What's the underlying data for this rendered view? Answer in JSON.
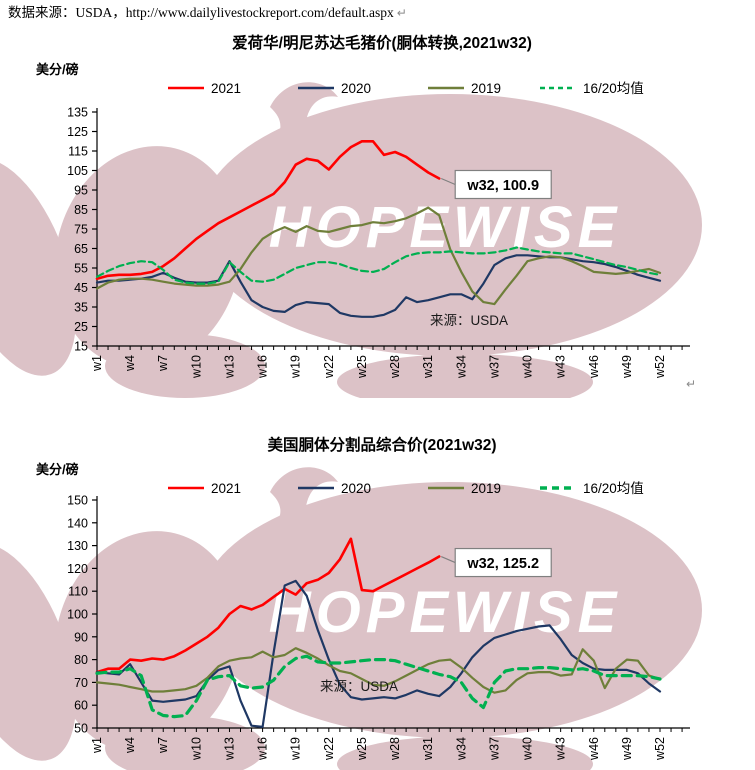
{
  "header": {
    "source_line": "数据来源：USDA，http://www.dailylivestockreport.com/default.aspx",
    "return_mark": "↵"
  },
  "watermark": {
    "text": "HOPEWISE",
    "pig_color": "#dcc2c7",
    "text_color": "#ffffff"
  },
  "palette": {
    "red": "#ff0000",
    "navy": "#1f3864",
    "olive": "#6f7f3a",
    "green": "#00b050",
    "axis": "#000000",
    "callout_border": "#808080",
    "gray": "#8a8a8a"
  },
  "chart_data": [
    {
      "type": "line",
      "title": "爱荷华/明尼苏达毛猪价(胴体转换,2021w32)",
      "y_axis_label": "美分/磅",
      "source_note": "来源：USDA",
      "annotation": {
        "label": "w32, 100.9",
        "week": 32,
        "value": 100.9
      },
      "ylim": [
        15,
        135
      ],
      "y_ticks": [
        135,
        125,
        115,
        105,
        95,
        85,
        75,
        65,
        55,
        45,
        35,
        25,
        15
      ],
      "x_tick_labels": [
        "w1",
        "w4",
        "w7",
        "w10",
        "w13",
        "w16",
        "w19",
        "w22",
        "w25",
        "w28",
        "w31",
        "w34",
        "w37",
        "w40",
        "w43",
        "w46",
        "w49",
        "w52"
      ],
      "x_weeks": 52,
      "legend": [
        "2021",
        "2020",
        "2019",
        "16/20均值"
      ],
      "legend_position": "top",
      "grid": false,
      "series": [
        {
          "name": "2021",
          "color": "red",
          "dashed": false,
          "values": [
            49.5,
            51,
            51.5,
            51.5,
            52,
            53,
            56,
            60,
            65,
            70,
            74,
            78,
            81,
            84,
            87,
            90,
            93,
            99,
            108,
            111,
            110,
            105.5,
            112,
            117,
            120,
            120,
            113,
            114.5,
            112,
            108,
            104,
            100.9
          ]
        },
        {
          "name": "2020",
          "color": "navy",
          "dashed": false,
          "values": [
            47.5,
            48.5,
            48.5,
            49,
            49.5,
            50.5,
            52.5,
            50,
            48,
            47.5,
            47.5,
            48.5,
            58.5,
            48,
            38.5,
            35,
            33,
            32.5,
            36,
            37.5,
            37,
            36.5,
            32,
            30.5,
            30,
            30,
            31,
            33.5,
            40,
            37.5,
            38.5,
            40,
            41.5,
            41.5,
            39,
            47,
            56.5,
            60,
            61.5,
            61.5,
            61,
            60.5,
            60.5,
            59.5,
            58.5,
            58,
            57,
            55.5,
            53.5,
            51.5,
            50,
            48.5
          ]
        },
        {
          "name": "2019",
          "color": "olive",
          "dashed": false,
          "values": [
            44.5,
            47.5,
            49,
            49.5,
            49.5,
            49,
            48,
            47,
            46.5,
            46,
            46,
            46.5,
            48,
            54.5,
            63,
            70,
            73.5,
            76,
            73.5,
            76.5,
            74,
            73.5,
            75,
            76.5,
            77,
            78.5,
            78,
            79,
            80.5,
            83,
            86,
            82,
            64.5,
            53,
            43,
            37.5,
            36.5,
            44,
            51,
            58.5,
            60,
            61,
            60.5,
            58.5,
            56,
            53,
            52.5,
            52,
            52.5,
            53.5,
            54.5,
            52.5
          ]
        },
        {
          "name": "16/20均值",
          "color": "green",
          "dashed": true,
          "values": [
            50.5,
            53.5,
            56,
            57.5,
            58.5,
            58,
            54,
            49,
            47.5,
            47,
            47,
            48,
            58,
            53,
            48.5,
            48,
            49,
            52,
            55,
            56.5,
            58,
            58,
            57,
            55,
            53.5,
            53,
            54.5,
            58,
            61,
            62.5,
            63,
            63,
            63.5,
            63,
            62.5,
            62.5,
            63,
            64,
            65.5,
            64.5,
            63.5,
            63,
            62.5,
            62.5,
            61,
            59.5,
            58,
            56.5,
            55.5,
            54,
            52.5,
            51.5
          ]
        }
      ]
    },
    {
      "type": "line",
      "title": "美国胴体分割品综合价(2021w32)",
      "y_axis_label": "美分/磅",
      "source_note": "来源：USDA",
      "annotation": {
        "label": "w32, 125.2",
        "week": 32,
        "value": 125.2
      },
      "ylim": [
        50,
        150
      ],
      "y_ticks": [
        150,
        140,
        130,
        120,
        110,
        100,
        90,
        80,
        70,
        60,
        50
      ],
      "x_tick_labels": [
        "w1",
        "w4",
        "w7",
        "w10",
        "w13",
        "w16",
        "w19",
        "w22",
        "w25",
        "w28",
        "w31",
        "w34",
        "w37",
        "w40",
        "w43",
        "w46",
        "w49",
        "w52"
      ],
      "x_weeks": 52,
      "legend": [
        "2021",
        "2020",
        "2019",
        "16/20均值"
      ],
      "legend_position": "top",
      "grid": false,
      "series": [
        {
          "name": "2021",
          "color": "red",
          "dashed": false,
          "values": [
            74.5,
            76,
            76,
            80,
            79.5,
            80.5,
            80,
            81.5,
            84,
            87,
            90,
            94,
            100,
            103.5,
            102,
            104,
            107.5,
            111,
            108.5,
            113.5,
            115,
            118,
            124,
            133,
            110.5,
            110,
            112.5,
            115,
            117.5,
            120,
            122.5,
            125.2
          ]
        },
        {
          "name": "2020",
          "color": "navy",
          "dashed": false,
          "values": [
            74.5,
            74,
            73.5,
            78,
            70,
            62,
            61.5,
            62,
            62.5,
            64,
            71,
            75.5,
            77,
            62,
            51,
            50.5,
            83,
            112.5,
            114.5,
            108,
            93,
            80,
            69,
            63.5,
            62.5,
            63,
            63.5,
            63,
            64.5,
            66.5,
            65,
            64,
            68,
            74,
            81,
            86,
            89.5,
            91,
            92.5,
            93.5,
            94.5,
            95,
            89,
            82,
            78.5,
            76,
            75.5,
            75.5,
            75.5,
            74,
            69.5,
            66
          ]
        },
        {
          "name": "2019",
          "color": "olive",
          "dashed": false,
          "values": [
            70,
            69.5,
            69,
            68,
            67,
            66,
            66,
            66.5,
            67,
            68.5,
            72,
            77,
            79.5,
            80.5,
            81,
            83.5,
            81,
            82,
            85,
            83,
            80.5,
            77.5,
            75,
            74,
            71.5,
            69,
            68.5,
            70.5,
            73,
            75.5,
            78,
            79.5,
            80,
            76.5,
            72,
            68,
            65.5,
            66.5,
            71,
            74,
            74.5,
            74.5,
            73,
            73.5,
            84.5,
            79.5,
            67.5,
            76,
            80,
            79.5,
            73,
            71.5
          ]
        },
        {
          "name": "16/20均值",
          "color": "green",
          "dashed": true,
          "values": [
            74,
            74.5,
            74.5,
            76,
            73,
            58,
            55.5,
            55,
            55.5,
            62,
            71,
            72.5,
            73,
            68.5,
            67.5,
            68,
            71,
            77,
            80.5,
            81.5,
            79,
            78.5,
            78.5,
            79,
            79.5,
            80,
            80,
            79.5,
            78,
            76.5,
            75,
            73.5,
            72.5,
            70,
            63,
            59,
            70,
            75,
            76,
            76,
            76.5,
            76.5,
            76,
            75.5,
            76,
            75,
            73,
            73,
            73,
            73,
            72.5,
            71.5
          ]
        }
      ]
    }
  ]
}
